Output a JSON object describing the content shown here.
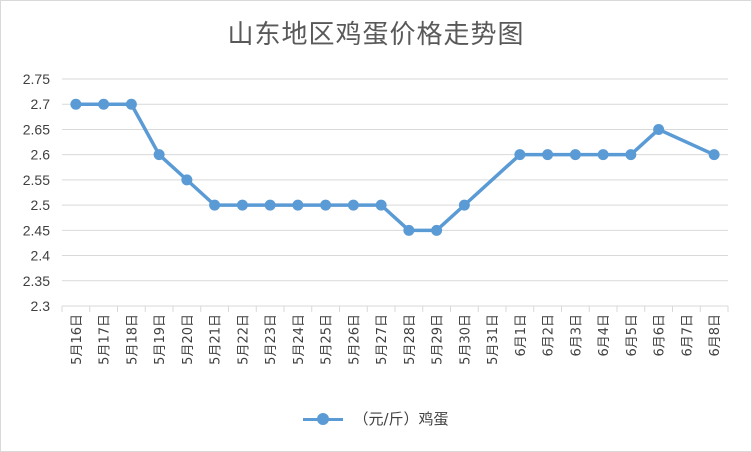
{
  "chart_data": {
    "type": "line",
    "title": "山东地区鸡蛋价格走势图",
    "categories": [
      "5月16日",
      "5月17日",
      "5月18日",
      "5月19日",
      "5月20日",
      "5月21日",
      "5月22日",
      "5月23日",
      "5月24日",
      "5月25日",
      "5月26日",
      "5月27日",
      "5月28日",
      "5月29日",
      "5月30日",
      "5月31日",
      "6月1日",
      "6月2日",
      "6月3日",
      "6月4日",
      "6月5日",
      "6月6日",
      "6月7日",
      "6月8日"
    ],
    "series": [
      {
        "name": "（元/斤）鸡蛋",
        "values": [
          2.7,
          2.7,
          2.7,
          2.6,
          2.55,
          2.5,
          2.5,
          2.5,
          2.5,
          2.5,
          2.5,
          2.5,
          2.45,
          2.45,
          2.5,
          null,
          2.6,
          2.6,
          2.6,
          2.6,
          2.6,
          2.65,
          null,
          2.6
        ],
        "color": "#5b9bd5"
      }
    ],
    "ylim": [
      2.3,
      2.75
    ],
    "yticks": [
      "2.3",
      "2.35",
      "2.4",
      "2.45",
      "2.5",
      "2.55",
      "2.6",
      "2.65",
      "2.7",
      "2.75"
    ],
    "grid": true,
    "legend_position": "bottom",
    "gaps": "connected"
  }
}
